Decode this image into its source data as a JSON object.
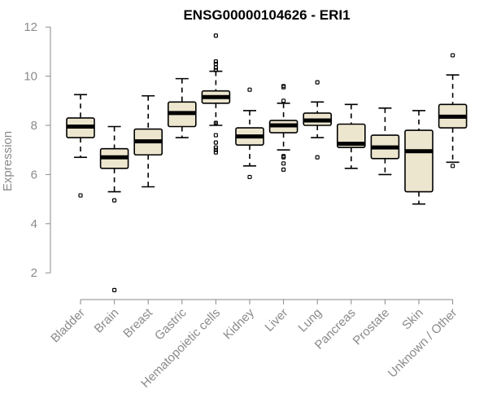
{
  "chart_data": {
    "type": "box",
    "title": "ENSG00000104626 - ERI1",
    "xlabel": "",
    "ylabel": "Expression",
    "ylim": [
      1.0,
      12.0
    ],
    "yticks": [
      2,
      4,
      6,
      8,
      10,
      12
    ],
    "grid": false,
    "categories": [
      "Bladder",
      "Brain",
      "Breast",
      "Gastric",
      "Hematopoietic cells",
      "Kidney",
      "Liver",
      "Lung",
      "Pancreas",
      "Prostate",
      "Skin",
      "Unknown / Other"
    ],
    "boxes": [
      {
        "category": "Bladder",
        "whisker_low": 6.7,
        "q1": 7.5,
        "median": 7.95,
        "q3": 8.3,
        "whisker_high": 9.25,
        "outliers": [
          5.15
        ]
      },
      {
        "category": "Brain",
        "whisker_low": 5.3,
        "q1": 6.25,
        "median": 6.7,
        "q3": 7.05,
        "whisker_high": 7.95,
        "outliers": [
          4.95,
          1.3
        ]
      },
      {
        "category": "Breast",
        "whisker_low": 5.5,
        "q1": 6.8,
        "median": 7.35,
        "q3": 7.85,
        "whisker_high": 9.2,
        "outliers": []
      },
      {
        "category": "Gastric",
        "whisker_low": 7.5,
        "q1": 7.95,
        "median": 8.5,
        "q3": 8.95,
        "whisker_high": 9.9,
        "outliers": []
      },
      {
        "category": "Hematopoietic cells",
        "whisker_low": 8.0,
        "q1": 8.9,
        "median": 9.15,
        "q3": 9.4,
        "whisker_high": 10.2,
        "outliers": [
          11.65,
          10.6,
          10.5,
          10.35,
          10.25,
          8.1,
          7.6,
          7.3,
          7.1,
          7.0,
          6.9
        ]
      },
      {
        "category": "Kidney",
        "whisker_low": 6.35,
        "q1": 7.2,
        "median": 7.55,
        "q3": 7.9,
        "whisker_high": 8.6,
        "outliers": [
          9.45,
          5.9
        ]
      },
      {
        "category": "Liver",
        "whisker_low": 7.0,
        "q1": 7.7,
        "median": 8.0,
        "q3": 8.2,
        "whisker_high": 8.9,
        "outliers": [
          9.6,
          9.55,
          9.0,
          6.75,
          6.7,
          6.45,
          6.2
        ]
      },
      {
        "category": "Lung",
        "whisker_low": 7.5,
        "q1": 8.0,
        "median": 8.2,
        "q3": 8.5,
        "whisker_high": 8.95,
        "outliers": [
          9.75,
          6.7
        ]
      },
      {
        "category": "Pancreas",
        "whisker_low": 6.25,
        "q1": 7.1,
        "median": 7.25,
        "q3": 8.05,
        "whisker_high": 8.85,
        "outliers": []
      },
      {
        "category": "Prostate",
        "whisker_low": 6.0,
        "q1": 6.65,
        "median": 7.1,
        "q3": 7.6,
        "whisker_high": 8.7,
        "outliers": []
      },
      {
        "category": "Skin",
        "whisker_low": 4.8,
        "q1": 5.3,
        "median": 6.95,
        "q3": 7.8,
        "whisker_high": 8.6,
        "outliers": []
      },
      {
        "category": "Unknown / Other",
        "whisker_low": 6.5,
        "q1": 7.9,
        "median": 8.35,
        "q3": 8.85,
        "whisker_high": 10.05,
        "outliers": [
          10.85,
          6.35
        ]
      }
    ]
  }
}
